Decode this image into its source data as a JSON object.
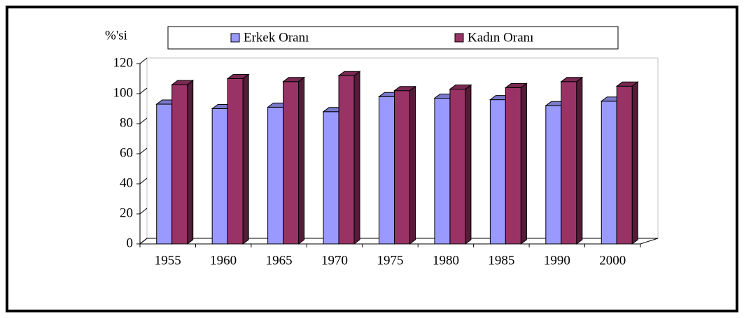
{
  "chart_data": {
    "type": "bar3d",
    "y_label": "%'si",
    "categories": [
      "1955",
      "1960",
      "1965",
      "1970",
      "1975",
      "1980",
      "1985",
      "1990",
      "2000"
    ],
    "series": [
      {
        "name": "Erkek Oranı",
        "color": "#9999ff",
        "values": [
          93,
          90,
          91,
          88,
          98,
          97,
          96,
          92,
          95
        ]
      },
      {
        "name": "Kadın Oranı",
        "color": "#993366",
        "values": [
          106,
          110,
          108,
          112,
          102,
          103,
          104,
          108,
          105
        ]
      }
    ],
    "ylim": [
      0,
      120
    ],
    "yticks": [
      0,
      20,
      40,
      60,
      80,
      100,
      120
    ]
  }
}
